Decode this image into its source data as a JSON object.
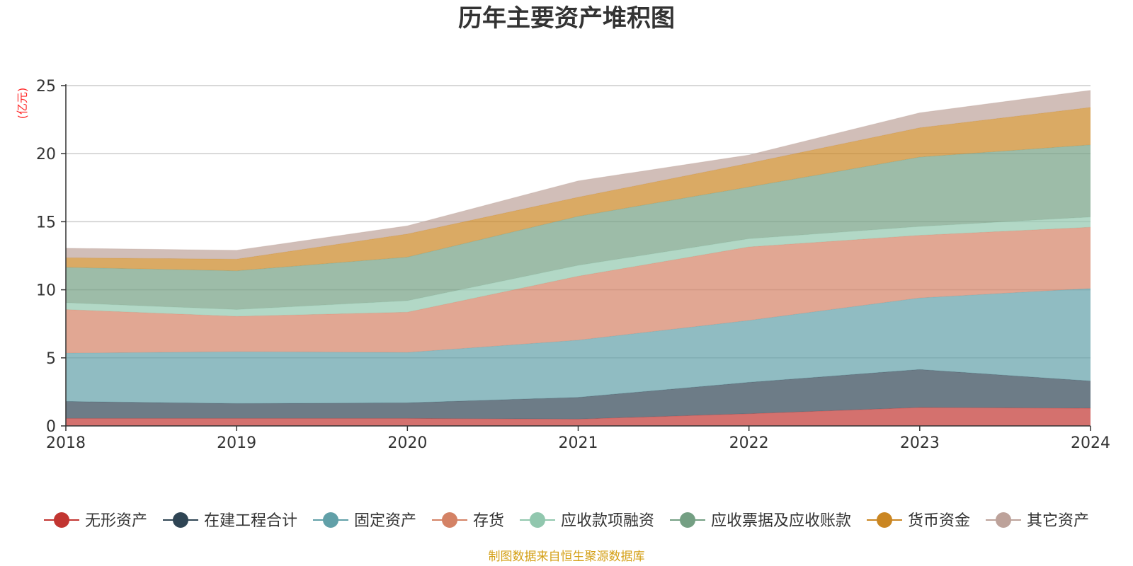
{
  "chart_data": {
    "type": "area",
    "stacked": true,
    "title": "历年主要资产堆积图",
    "y_unit": "(亿元)",
    "x": [
      "2018",
      "2019",
      "2020",
      "2021",
      "2022",
      "2023",
      "2024"
    ],
    "ylim": [
      0,
      25
    ],
    "y_ticks": [
      "0",
      "5",
      "10",
      "15",
      "20",
      "25"
    ],
    "grid": true,
    "legend_position": "bottom",
    "series": [
      {
        "name": "无形资产",
        "color": "#c23531",
        "values": [
          0.55,
          0.55,
          0.55,
          0.5,
          0.9,
          1.35,
          1.3
        ]
      },
      {
        "name": "在建工程合计",
        "color": "#2f4554",
        "values": [
          1.25,
          1.1,
          1.15,
          1.6,
          2.3,
          2.8,
          2.0
        ]
      },
      {
        "name": "固定资产",
        "color": "#61a0a8",
        "values": [
          3.55,
          3.8,
          3.7,
          4.2,
          4.55,
          5.25,
          6.8
        ]
      },
      {
        "name": "存货",
        "color": "#d48265",
        "values": [
          3.2,
          2.6,
          2.95,
          4.7,
          5.4,
          4.6,
          4.5
        ]
      },
      {
        "name": "应收款项融资",
        "color": "#91c7ae",
        "values": [
          0.5,
          0.5,
          0.85,
          0.8,
          0.6,
          0.65,
          0.75
        ]
      },
      {
        "name": "应收票据及应收账款",
        "color": "#749f83",
        "values": [
          2.6,
          2.85,
          3.2,
          3.6,
          3.8,
          5.1,
          5.3
        ]
      },
      {
        "name": "货币资金",
        "color": "#ca8622",
        "values": [
          0.7,
          0.85,
          1.7,
          1.4,
          1.75,
          2.15,
          2.75
        ]
      },
      {
        "name": "其它资产",
        "color": "#bda29a",
        "values": [
          0.7,
          0.65,
          0.6,
          1.2,
          0.6,
          1.1,
          1.25
        ]
      }
    ]
  },
  "source": "制图数据来自恒生聚源数据库"
}
